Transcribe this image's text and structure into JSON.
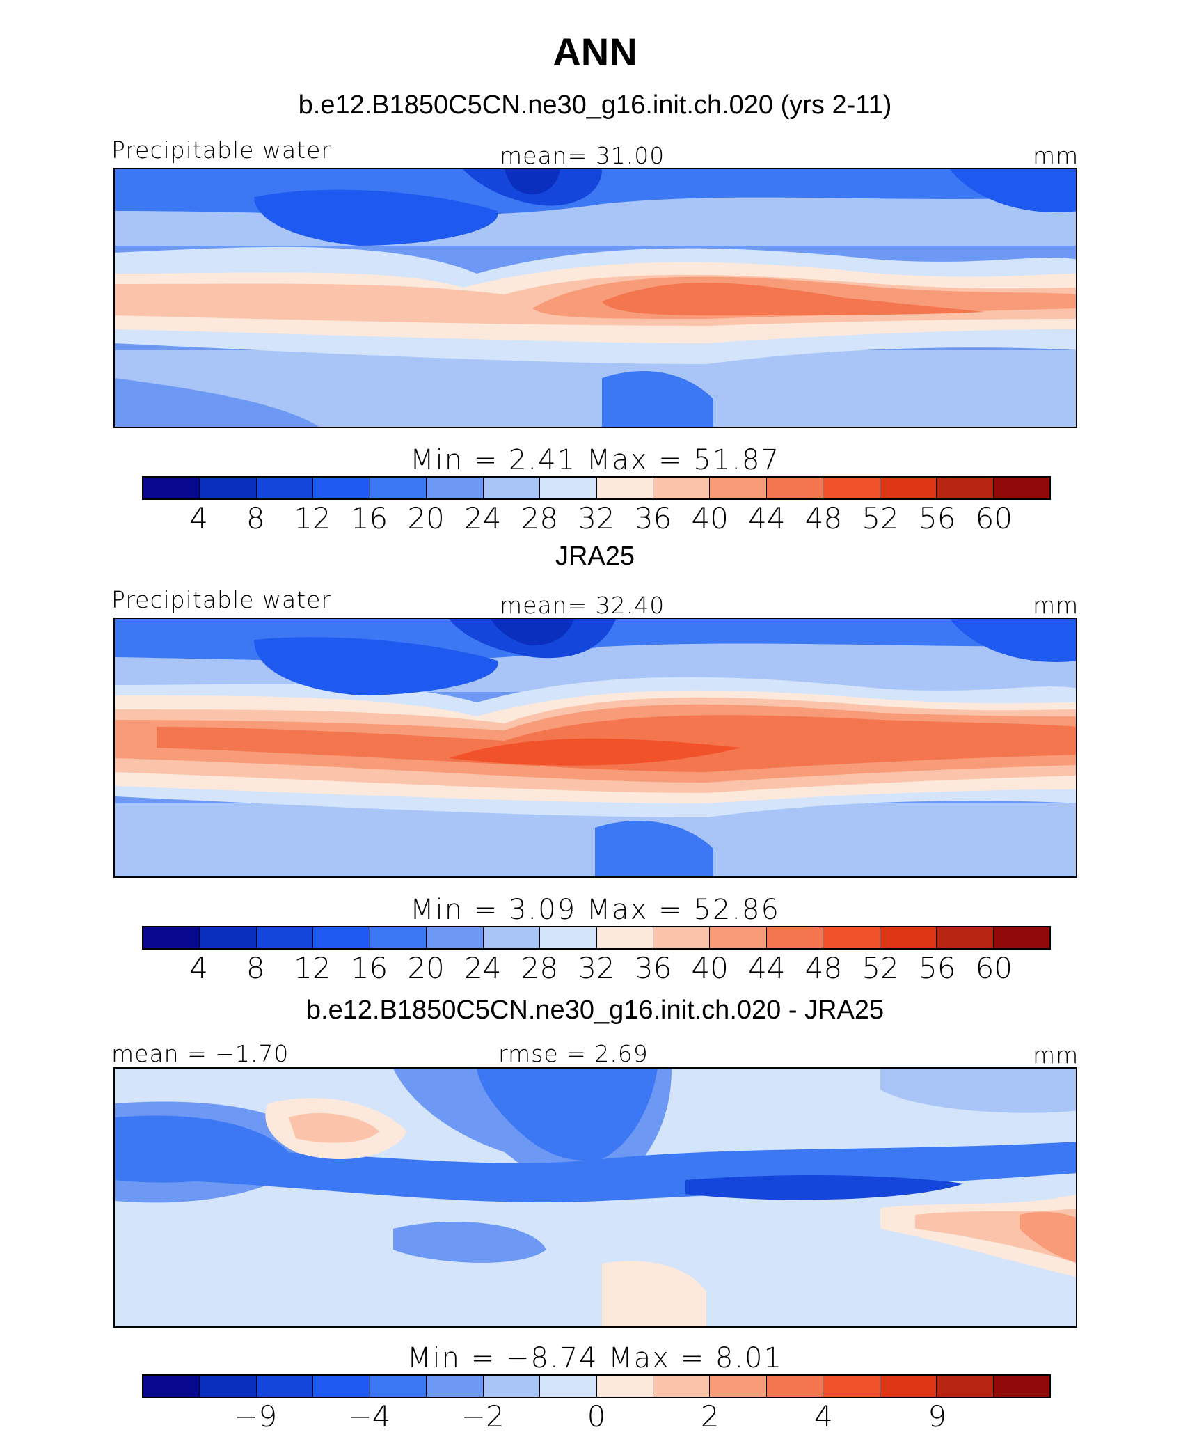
{
  "title": "ANN",
  "palette": [
    "#08088e",
    "#0a2fbf",
    "#1546dc",
    "#1f5af0",
    "#3d78f4",
    "#6d99f5",
    "#a9c5f7",
    "#d3e4fb",
    "#fde9dc",
    "#fac3aa",
    "#f79b79",
    "#f4764f",
    "#f2522a",
    "#de3514",
    "#b82412",
    "#900a0a"
  ],
  "colorbar_common": {
    "ticks": [
      "4",
      "8",
      "12",
      "16",
      "20",
      "24",
      "28",
      "32",
      "36",
      "40",
      "44",
      "48",
      "52",
      "56",
      "60"
    ]
  },
  "colorbar_diff": {
    "ticks": [
      "−9",
      "−4",
      "−2",
      "0",
      "2",
      "4",
      "9"
    ],
    "tick_positions": [
      2,
      4,
      6,
      8,
      10,
      12,
      14
    ]
  },
  "panels": [
    {
      "title": "b.e12.B1850C5CN.ne30_g16.init.ch.020 (yrs 2-11)",
      "left_label": "Precipitable water",
      "center_label": "mean=   31.00",
      "right_label": "mm",
      "minmax": "Min  =     2.41  Max  =    51.87"
    },
    {
      "title": "JRA25",
      "left_label": "Precipitable water",
      "center_label": "mean=   32.40",
      "right_label": "mm",
      "minmax": "Min  =     3.09  Max  =    52.86"
    },
    {
      "title": "b.e12.B1850C5CN.ne30_g16.init.ch.020 - JRA25",
      "left_label": "mean  =   −1.70",
      "center_label": "rmse  =     2.69",
      "right_label": "mm",
      "minmax": "Min  =   −8.74  Max  =     8.01"
    }
  ],
  "chart_data": [
    {
      "type": "heatmap",
      "title": "b.e12.B1850C5CN.ne30_g16.init.ch.020 (yrs 2-11)",
      "field": "Precipitable water",
      "units": "mm",
      "mean": 31.0,
      "min": 2.41,
      "max": 51.87,
      "levels": [
        4,
        8,
        12,
        16,
        20,
        24,
        28,
        32,
        36,
        40,
        44,
        48,
        52,
        56,
        60
      ]
    },
    {
      "type": "heatmap",
      "title": "JRA25",
      "field": "Precipitable water",
      "units": "mm",
      "mean": 32.4,
      "min": 3.09,
      "max": 52.86,
      "levels": [
        4,
        8,
        12,
        16,
        20,
        24,
        28,
        32,
        36,
        40,
        44,
        48,
        52,
        56,
        60
      ]
    },
    {
      "type": "heatmap",
      "title": "b.e12.B1850C5CN.ne30_g16.init.ch.020 - JRA25",
      "units": "mm",
      "mean": -1.7,
      "rmse": 2.69,
      "min": -8.74,
      "max": 8.01,
      "levels": [
        -9,
        -4,
        -2,
        0,
        2,
        4,
        9
      ]
    }
  ]
}
